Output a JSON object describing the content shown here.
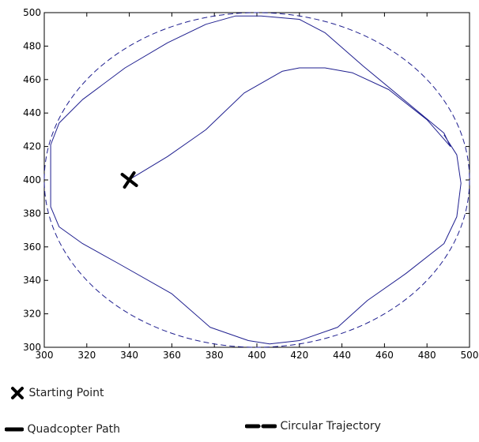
{
  "chart_data": {
    "type": "line",
    "xlim": [
      300,
      500
    ],
    "ylim": [
      300,
      500
    ],
    "xticks": [
      300,
      320,
      340,
      360,
      380,
      400,
      420,
      440,
      460,
      480,
      500
    ],
    "yticks": [
      300,
      320,
      340,
      360,
      380,
      400,
      420,
      440,
      460,
      480,
      500
    ],
    "grid": false,
    "legend_placement": "below",
    "series": [
      {
        "name": "Quadcopter Path",
        "style": "solid",
        "color": "#1f1f8f",
        "points": [
          [
            341,
            401
          ],
          [
            358,
            414
          ],
          [
            376,
            430
          ],
          [
            394,
            452
          ],
          [
            412,
            465
          ],
          [
            420,
            467
          ],
          [
            432,
            467
          ],
          [
            445,
            464
          ],
          [
            462,
            454
          ],
          [
            480,
            436
          ],
          [
            491,
            420
          ],
          [
            488,
            428
          ],
          [
            470,
            447
          ],
          [
            450,
            468
          ],
          [
            432,
            488
          ],
          [
            420,
            496
          ],
          [
            402,
            498
          ],
          [
            390,
            498
          ],
          [
            376,
            493
          ],
          [
            358,
            482
          ],
          [
            338,
            467
          ],
          [
            318,
            448
          ],
          [
            307,
            434
          ],
          [
            303,
            421
          ],
          [
            303,
            400
          ],
          [
            303,
            384
          ],
          [
            307,
            372
          ],
          [
            318,
            362
          ],
          [
            335,
            350
          ],
          [
            360,
            332
          ],
          [
            378,
            312
          ],
          [
            396,
            304
          ],
          [
            406,
            302
          ],
          [
            420,
            304
          ],
          [
            438,
            312
          ],
          [
            452,
            328
          ],
          [
            470,
            344
          ],
          [
            488,
            362
          ],
          [
            494,
            378
          ],
          [
            496,
            398
          ],
          [
            494,
            415
          ],
          [
            488,
            427
          ]
        ]
      },
      {
        "name": "Circular Trajectory",
        "style": "dashed",
        "color": "#1f1f8f",
        "center": [
          400,
          400
        ],
        "radius": 100
      }
    ],
    "markers": [
      {
        "name": "Starting Point",
        "x": 340,
        "y": 400,
        "symbol": "x"
      }
    ]
  },
  "legend": {
    "start_label": "Starting Point",
    "path_label": "Quadcopter Path",
    "circle_label": "Circular Trajectory"
  }
}
